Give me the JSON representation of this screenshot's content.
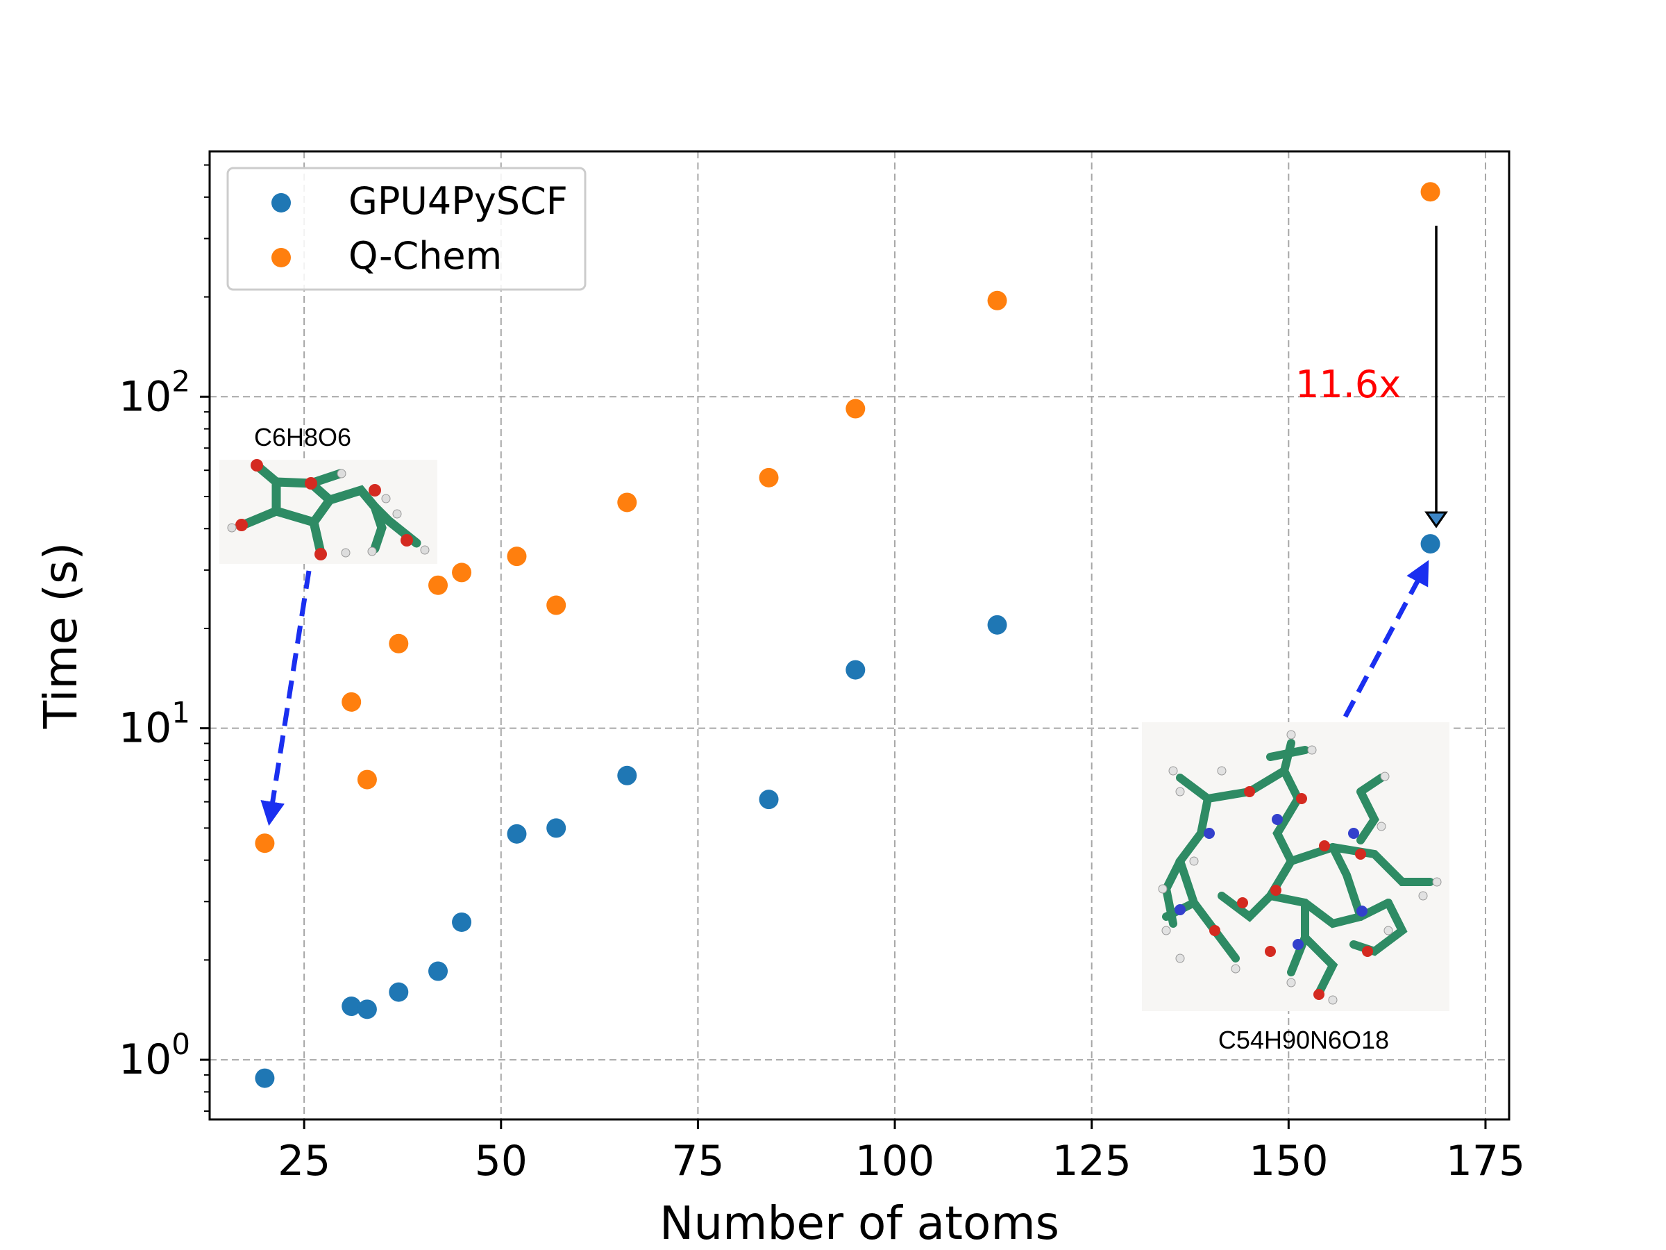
{
  "chart_data": {
    "type": "scatter",
    "title": "",
    "xlabel": "Number of atoms",
    "ylabel": "Time (s)",
    "xlim": [
      13,
      178
    ],
    "ylim_log10": [
      -0.18,
      2.74
    ],
    "yscale": "log",
    "grid": true,
    "x_ticks": [
      25,
      50,
      75,
      100,
      125,
      150,
      175
    ],
    "x_tick_labels": [
      "25",
      "50",
      "75",
      "100",
      "125",
      "150",
      "175"
    ],
    "y_ticks": [
      1,
      10,
      100
    ],
    "y_tick_labels": [
      {
        "base": "10",
        "exp": "0"
      },
      {
        "base": "10",
        "exp": "1"
      },
      {
        "base": "10",
        "exp": "2"
      }
    ],
    "legend_position": "upper-left",
    "series": [
      {
        "name": "GPU4PySCF",
        "color": "#1f77b4",
        "points": [
          [
            20,
            0.88
          ],
          [
            31,
            1.45
          ],
          [
            33,
            1.42
          ],
          [
            37,
            1.6
          ],
          [
            42,
            1.85
          ],
          [
            45,
            2.6
          ],
          [
            52,
            4.8
          ],
          [
            57,
            5.0
          ],
          [
            66,
            7.2
          ],
          [
            84,
            6.1
          ],
          [
            95,
            15.0
          ],
          [
            113,
            20.5
          ],
          [
            168,
            36.0
          ]
        ]
      },
      {
        "name": "Q-Chem",
        "color": "#ff7f0e",
        "points": [
          [
            20,
            4.5
          ],
          [
            31,
            12.0
          ],
          [
            33,
            7.0
          ],
          [
            37,
            18.0
          ],
          [
            42,
            27.0
          ],
          [
            45,
            29.5
          ],
          [
            52,
            33.0
          ],
          [
            57,
            23.5
          ],
          [
            66,
            48.0
          ],
          [
            84,
            57.0
          ],
          [
            95,
            92.0
          ],
          [
            113,
            195.0
          ],
          [
            168,
            415.0
          ]
        ]
      }
    ],
    "annotations": {
      "speedup": {
        "text": "11.6x",
        "color": "#ff0000"
      },
      "small_molecule": {
        "label": "C6H8O6"
      },
      "large_molecule": {
        "label": "C54H90N6O18"
      }
    }
  }
}
